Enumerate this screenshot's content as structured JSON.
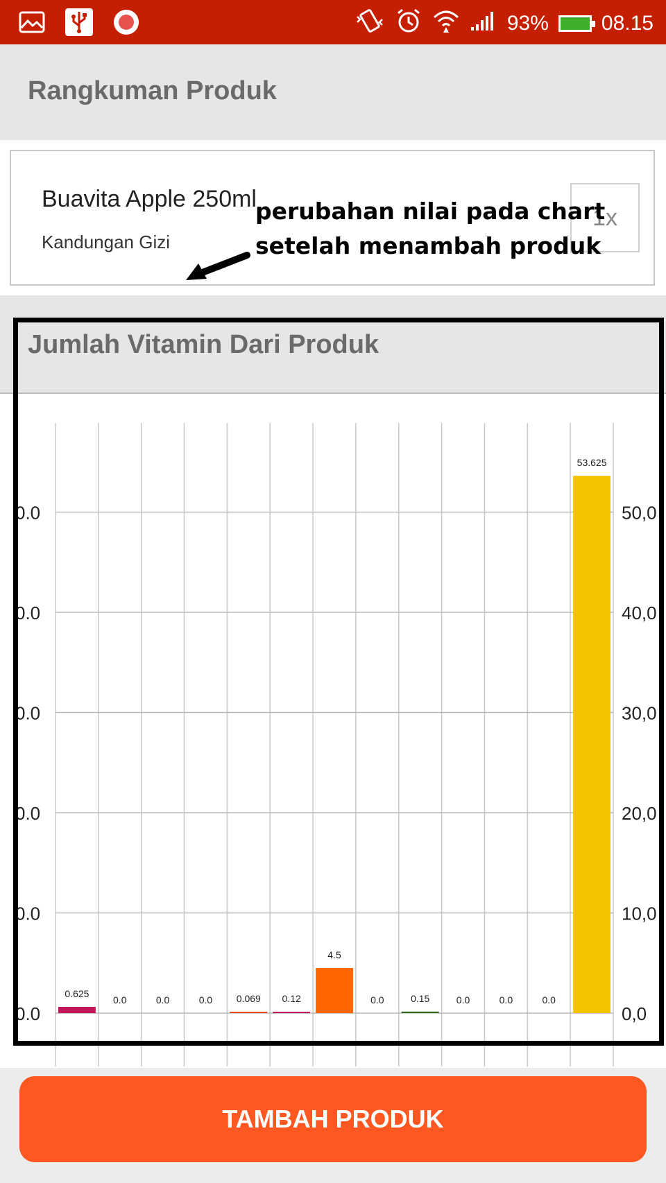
{
  "status_bar": {
    "battery": "93%",
    "time": "08.15"
  },
  "summary": {
    "title": "Rangkuman Produk"
  },
  "product": {
    "name": "Buavita Apple 250ml",
    "subtitle": "Kandungan Gizi",
    "quantity": "1x"
  },
  "annotation": {
    "line1": "perubahan nilai pada chart",
    "line2": "setelah menambah produk"
  },
  "chart_section": {
    "title": "Jumlah Vitamin Dari Produk"
  },
  "chart_data": {
    "type": "bar",
    "title": "Jumlah Vitamin Dari Produk",
    "values": [
      0.625,
      0.0,
      0.0,
      0.0,
      0.069,
      0.12,
      4.5,
      0.0,
      0.15,
      0.0,
      0.0,
      0.0,
      53.625
    ],
    "value_labels": [
      "0.625",
      "0.0",
      "0.0",
      "0.0",
      "0.069",
      "0.12",
      "4.5",
      "0.0",
      "0.15",
      "0.0",
      "0.0",
      "0.0",
      "53.625"
    ],
    "colors": [
      "#c2185b",
      "#cccccc",
      "#cccccc",
      "#cccccc",
      "#e64a19",
      "#c2185b",
      "#ff6600",
      "#cccccc",
      "#33691e",
      "#cccccc",
      "#cccccc",
      "#cccccc",
      "#f4c400"
    ],
    "ylim": [
      0,
      60
    ],
    "left_ticks": [
      "0.0",
      "0.0",
      "0.0",
      "0.0",
      "0.0",
      "0.0"
    ],
    "right_ticks": [
      "0,0",
      "10,0",
      "20,0",
      "30,0",
      "40,0",
      "50,0"
    ],
    "grid": true
  },
  "button": {
    "label": "TAMBAH PRODUK"
  }
}
